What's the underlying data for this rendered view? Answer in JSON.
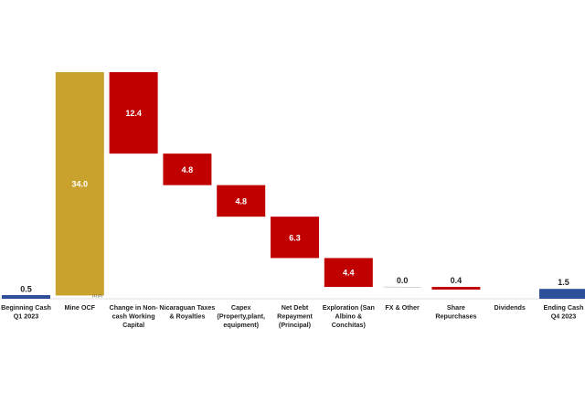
{
  "chart_data": {
    "type": "bar",
    "subtype": "waterfall",
    "title": "",
    "xlabel": "",
    "ylabel": "",
    "ylim": [
      0,
      36
    ],
    "grid": false,
    "legend": "none",
    "categories": [
      [
        "Beginning Cash",
        "Q1 2023"
      ],
      [
        "Mine OCF"
      ],
      [
        "Change in Non-",
        "cash Working",
        "Capital"
      ],
      [
        "Nicaraguan Taxes",
        "& Royalties"
      ],
      [
        "Capex",
        "(Property,plant,",
        "equipment)"
      ],
      [
        "Net Debt",
        "Repayment",
        "(Principal)"
      ],
      [
        "Exploration (San",
        "Albino &",
        "Conchitas)"
      ],
      [
        "FX & Other"
      ],
      [
        "Share",
        "Repurchases"
      ],
      [
        "Dividends"
      ],
      [
        "Ending Cash",
        "Q4 2023"
      ]
    ],
    "steps": [
      {
        "kind": "total",
        "value": 0.5,
        "label": "0.5"
      },
      {
        "kind": "increase",
        "value": 34.0,
        "label": "34.0",
        "note": "(1) (2)"
      },
      {
        "kind": "decrease",
        "value": 12.4,
        "label": "12.4"
      },
      {
        "kind": "decrease",
        "value": 4.8,
        "label": "4.8"
      },
      {
        "kind": "decrease",
        "value": 4.8,
        "label": "4.8"
      },
      {
        "kind": "decrease",
        "value": 6.3,
        "label": "6.3"
      },
      {
        "kind": "decrease",
        "value": 4.4,
        "label": "4.4"
      },
      {
        "kind": "decrease",
        "value": 0.0,
        "label": "0.0"
      },
      {
        "kind": "decrease",
        "value": 0.4,
        "label": "0.4"
      },
      {
        "kind": "decrease",
        "value": 0.0,
        "label": ""
      },
      {
        "kind": "total",
        "value": 1.5,
        "label": "1.5"
      }
    ],
    "colors": {
      "total": "#2e4f9a",
      "increase": "#c8a22c",
      "decrease": "#c00000",
      "inside_label": "#ffffff",
      "outside_label": "#222222",
      "axis": "#bfbfbf"
    }
  }
}
